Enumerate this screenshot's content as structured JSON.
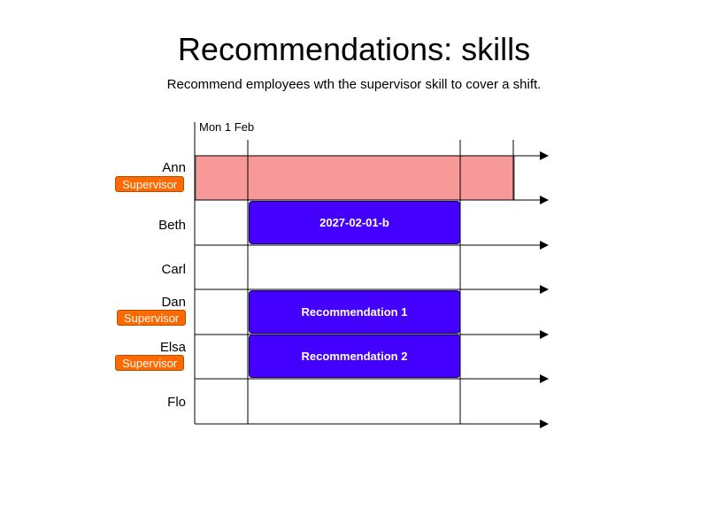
{
  "title": "Recommendations: skills",
  "subtitle": "Recommend employees wth the supervisor skill to cover a shift.",
  "timeline": {
    "start_label": "Mon 1 Feb"
  },
  "employees": [
    {
      "name": "Ann",
      "skill": "Supervisor"
    },
    {
      "name": "Beth",
      "skill": ""
    },
    {
      "name": "Carl",
      "skill": ""
    },
    {
      "name": "Dan",
      "skill": "Supervisor"
    },
    {
      "name": "Elsa",
      "skill": "Supervisor"
    },
    {
      "name": "Flo",
      "skill": ""
    }
  ],
  "shifts": [
    {
      "row": 1,
      "label": "2027-02-01-b",
      "kind": "assigned"
    },
    {
      "row": 3,
      "label": "Recommendation 1",
      "kind": "recommendation"
    },
    {
      "row": 4,
      "label": "Recommendation 2",
      "kind": "recommendation"
    }
  ],
  "unavailable": [
    {
      "row": 0
    }
  ],
  "colors": {
    "shift": "#4400ff",
    "skill_badge": "#ff6a00",
    "unavailable": "#f79999"
  }
}
